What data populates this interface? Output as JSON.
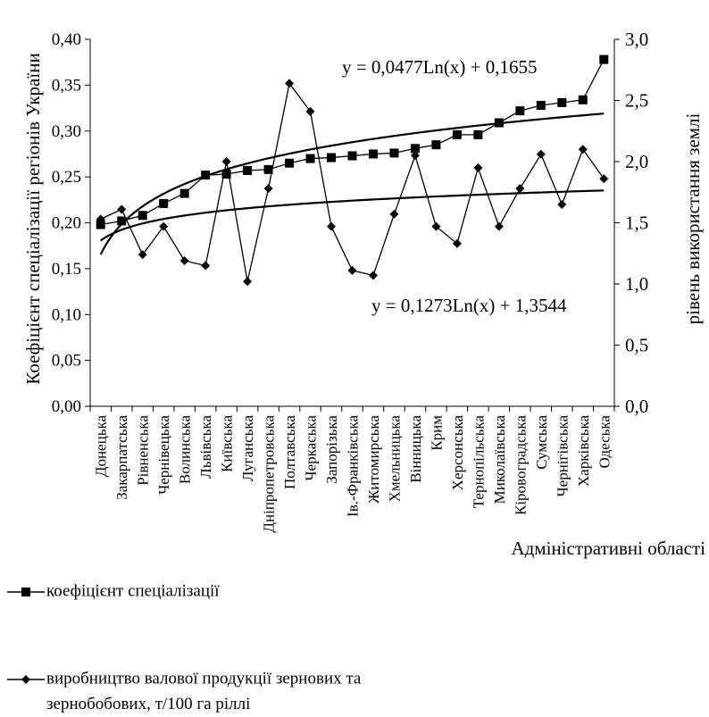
{
  "chart_data": {
    "type": "line",
    "categories": [
      "Донецька",
      "Закарпатська",
      "Рівненська",
      "Чернівецька",
      "Волинська",
      "Львівська",
      "Київська",
      "Луганська",
      "Дніпропетровська",
      "Полтавська",
      "Черкаська",
      "Запорізька",
      "Ів.-Франківська",
      "Житомирська",
      "Хмельницька",
      "Вінницька",
      "Крим",
      "Херсонська",
      "Тернопільська",
      "Миколаївська",
      "Кіровоградська",
      "Сумська",
      "Чернігівська",
      "Харківська",
      "Одеська"
    ],
    "xlabel": "Адміністративні області",
    "ylabel": "Коефіцієнт спеціалізації регіонів України",
    "y2label": "рівень використання землі",
    "ylim": [
      0,
      0.4
    ],
    "y2lim": [
      0,
      3.0
    ],
    "yticks": [
      "0,00",
      "0,05",
      "0,10",
      "0,15",
      "0,20",
      "0,25",
      "0,30",
      "0,35",
      "0,40"
    ],
    "y2ticks": [
      "0,0",
      "0,5",
      "1,0",
      "1,5",
      "2,0",
      "2,5",
      "3,0"
    ],
    "series": [
      {
        "name": "коефіцієнт спеціалізації",
        "axis": "left",
        "marker": "square",
        "values": [
          0.198,
          0.202,
          0.208,
          0.221,
          0.232,
          0.252,
          0.253,
          0.257,
          0.258,
          0.265,
          0.27,
          0.271,
          0.273,
          0.275,
          0.276,
          0.281,
          0.285,
          0.296,
          0.296,
          0.309,
          0.322,
          0.328,
          0.331,
          0.334,
          0.378
        ]
      },
      {
        "name": "виробництво валової продукції зернових та зернобобових, т/100 га ріллі",
        "axis": "right",
        "marker": "diamond",
        "values": [
          1.53,
          1.61,
          1.24,
          1.47,
          1.19,
          1.15,
          2.0,
          1.02,
          1.78,
          2.64,
          2.41,
          1.47,
          1.11,
          1.07,
          1.57,
          2.05,
          1.47,
          1.33,
          1.95,
          1.47,
          1.78,
          2.06,
          1.65,
          2.1,
          1.86
        ]
      }
    ],
    "trendlines": [
      {
        "equation": "y = 0,0477Ln(x) + 0,1655",
        "axis": "left"
      },
      {
        "equation": "y = 0,1273Ln(x) + 1,3544",
        "axis": "right"
      }
    ],
    "legend": "bottom-left",
    "grid": false
  },
  "legend": {
    "item1": "коефіцієнт спеціалізації",
    "item2_line1": "виробництво валової продукції зернових та",
    "item2_line2": "зернобобових, т/100 га ріллі"
  }
}
